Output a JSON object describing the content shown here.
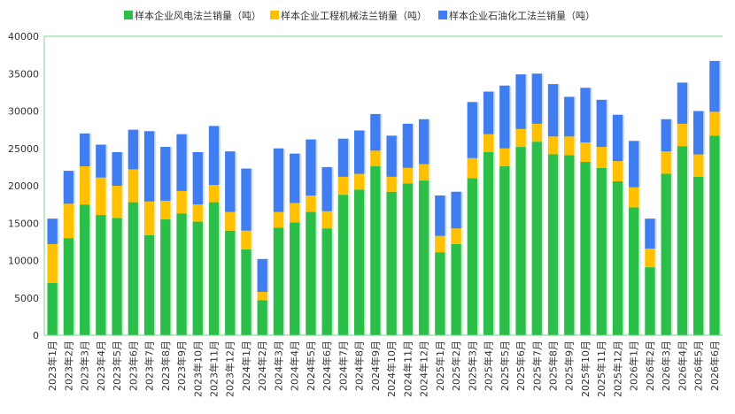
{
  "chart_data": {
    "type": "bar",
    "stacked": true,
    "ylim": [
      0,
      40000
    ],
    "yticks": [
      0,
      5000,
      10000,
      15000,
      20000,
      25000,
      30000,
      35000,
      40000
    ],
    "grid": false,
    "legend_position": "top",
    "categories": [
      "2023年1月",
      "2023年2月",
      "2023年3月",
      "2023年4月",
      "2023年5月",
      "2023年6月",
      "2023年7月",
      "2023年8月",
      "2023年9月",
      "2023年10月",
      "2023年11月",
      "2023年12月",
      "2024年1月",
      "2024年2月",
      "2024年3月",
      "2024年4月",
      "2024年5月",
      "2024年6月",
      "2024年7月",
      "2024年8月",
      "2024年9月",
      "2024年10月",
      "2024年11月",
      "2024年12月",
      "2025年1月",
      "2025年2月",
      "2025年3月",
      "2025年4月",
      "2025年5月",
      "2025年6月",
      "2025年7月",
      "2025年8月",
      "2025年9月",
      "2025年10月",
      "2025年11月",
      "2025年12月",
      "2026年1月",
      "2026年2月",
      "2026年3月",
      "2026年4月",
      "2026年5月",
      "2026年6月"
    ],
    "series": [
      {
        "name": "样本企业风电法兰销量（吨）",
        "color": "#2bbf4a",
        "values": [
          7000,
          13000,
          17500,
          16100,
          15700,
          17800,
          13400,
          15500,
          16300,
          15200,
          17800,
          14000,
          11500,
          4700,
          14400,
          15100,
          16500,
          14300,
          18800,
          19500,
          22600,
          19200,
          20300,
          20700,
          11100,
          12200,
          21000,
          24500,
          22600,
          25200,
          25900,
          24200,
          24100,
          23200,
          22400,
          20600,
          17100,
          9100,
          21600,
          25300,
          21200,
          26700
        ]
      },
      {
        "name": "样本企业工程机械法兰销量（吨）",
        "color": "#ffc000",
        "values": [
          5200,
          4600,
          5100,
          5000,
          4300,
          4400,
          4500,
          2500,
          3000,
          2300,
          2300,
          2500,
          2500,
          1100,
          2100,
          2600,
          2200,
          2300,
          2400,
          2100,
          2100,
          2000,
          2100,
          2200,
          2200,
          2100,
          2700,
          2400,
          2400,
          2400,
          2400,
          2400,
          2500,
          2600,
          2800,
          2700,
          2700,
          2500,
          3000,
          3000,
          3000,
          3200
        ]
      },
      {
        "name": "样本企业石油化工法兰销量（吨）",
        "color": "#3f7df0",
        "values": [
          3400,
          4400,
          4400,
          4400,
          4500,
          5300,
          9400,
          7200,
          7600,
          7000,
          7900,
          8100,
          8300,
          4400,
          8500,
          6600,
          7500,
          5900,
          5100,
          5800,
          4900,
          5500,
          5900,
          6000,
          5400,
          4900,
          7500,
          5700,
          8400,
          7300,
          6700,
          7000,
          5300,
          7300,
          6300,
          6200,
          6200,
          4000,
          4300,
          5500,
          5800,
          6800
        ]
      }
    ]
  }
}
